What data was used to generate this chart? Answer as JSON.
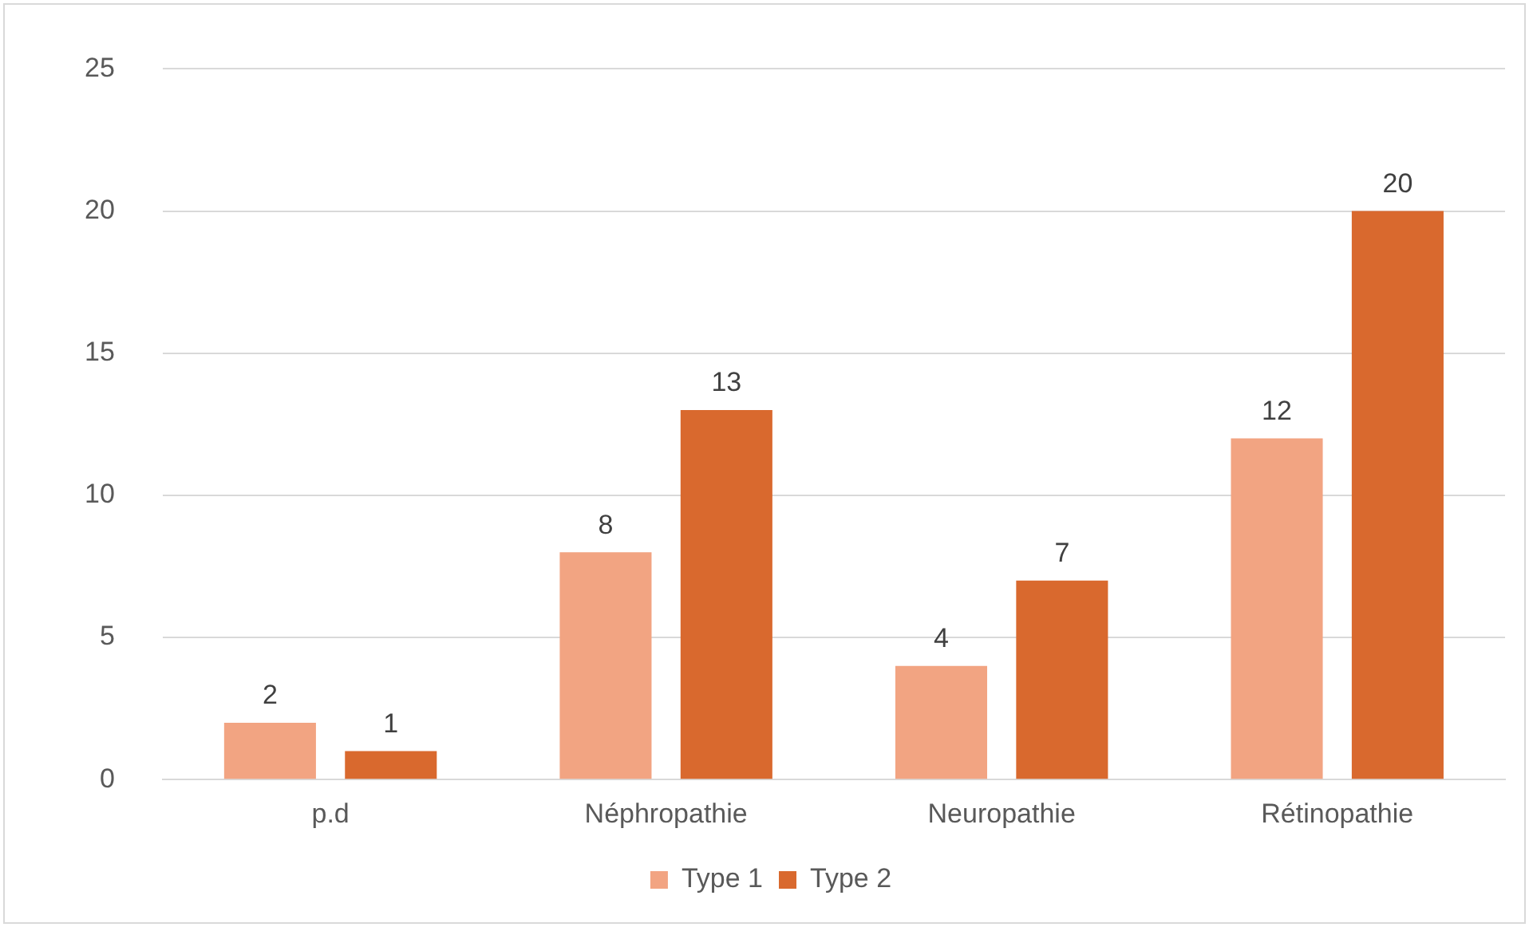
{
  "chart_data": {
    "type": "bar",
    "categories": [
      "p.d",
      "Néphropathie",
      "Neuropathie",
      "Rétinopathie"
    ],
    "series": [
      {
        "name": "Type 1",
        "color": "#f2a482",
        "values": [
          2,
          8,
          4,
          12
        ]
      },
      {
        "name": "Type 2",
        "color": "#d9692e",
        "values": [
          1,
          13,
          7,
          20
        ]
      }
    ],
    "ylim": [
      0,
      25
    ],
    "yticks": [
      0,
      5,
      10,
      15,
      20,
      25
    ],
    "grid": "y",
    "legend": "bottom",
    "data_labels": true
  }
}
